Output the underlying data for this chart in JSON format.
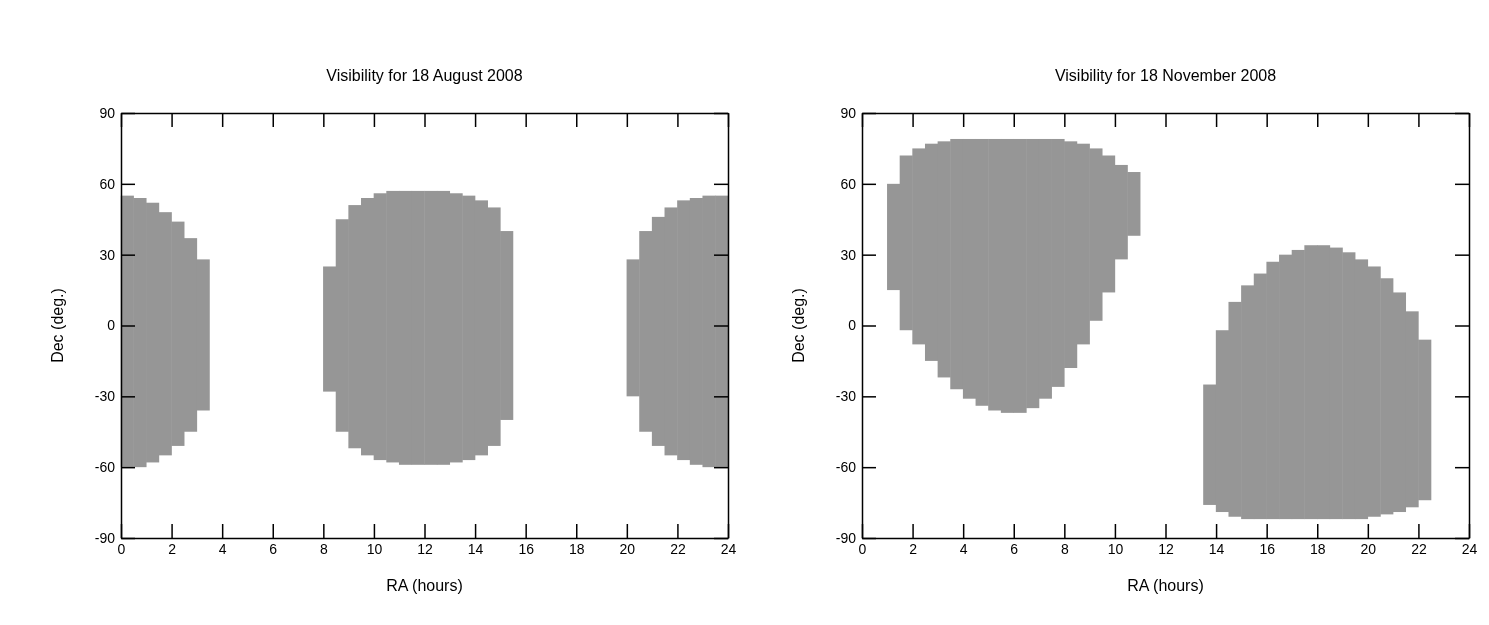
{
  "chart_data": [
    {
      "type": "bar",
      "title": "Visibility for 18 August 2008",
      "xlabel": "RA (hours)",
      "ylabel": "Dec (deg.)",
      "x": [
        0.25,
        0.75,
        1.25,
        1.75,
        2.25,
        2.75,
        3.25,
        8.25,
        8.75,
        9.25,
        9.75,
        10.25,
        10.75,
        11.25,
        11.75,
        12.25,
        12.75,
        13.25,
        13.75,
        14.25,
        14.75,
        15.25,
        20.25,
        20.75,
        21.25,
        21.75,
        22.25,
        22.75,
        23.25,
        23.75
      ],
      "base": [
        -60,
        -60,
        -58,
        -55,
        -51,
        -45,
        -36,
        -28,
        -45,
        -52,
        -55,
        -57,
        -58,
        -59,
        -59,
        -59,
        -59,
        -58,
        -57,
        -55,
        -51,
        -40,
        -30,
        -45,
        -51,
        -55,
        -57,
        -59,
        -60,
        -60
      ],
      "values": [
        115,
        114,
        110,
        103,
        95,
        82,
        64,
        53,
        90,
        103,
        109,
        113,
        115,
        116,
        116,
        116,
        116,
        114,
        112,
        108,
        101,
        80,
        58,
        85,
        97,
        105,
        110,
        113,
        115,
        115
      ],
      "color": "#969696",
      "xlim": [
        0,
        24
      ],
      "xticks": [
        0,
        2,
        4,
        6,
        8,
        10,
        12,
        14,
        16,
        18,
        20,
        22,
        24
      ],
      "ylim": [
        -90,
        90
      ],
      "yticks": [
        -90,
        -60,
        -30,
        0,
        30,
        60,
        90
      ]
    },
    {
      "type": "bar",
      "title": "Visibility for 18 November 2008",
      "xlabel": "RA (hours)",
      "ylabel": "Dec (deg.)",
      "x": [
        1.25,
        1.75,
        2.25,
        2.75,
        3.25,
        3.75,
        4.25,
        4.75,
        5.25,
        5.75,
        6.25,
        6.75,
        7.25,
        7.75,
        8.25,
        8.75,
        9.25,
        9.75,
        10.25,
        10.75,
        13.75,
        14.25,
        14.75,
        15.25,
        15.75,
        16.25,
        16.75,
        17.25,
        17.75,
        18.25,
        18.75,
        19.25,
        19.75,
        20.25,
        20.75,
        21.25,
        21.75,
        22.25
      ],
      "base": [
        15,
        -2,
        -8,
        -15,
        -22,
        -27,
        -31,
        -34,
        -36,
        -37,
        -37,
        -35,
        -31,
        -26,
        -18,
        -8,
        2,
        14,
        28,
        38,
        -76,
        -79,
        -81,
        -82,
        -82,
        -82,
        -82,
        -82,
        -82,
        -82,
        -82,
        -82,
        -82,
        -81,
        -80,
        -79,
        -77,
        -74
      ],
      "values": [
        45,
        74,
        83,
        92,
        100,
        106,
        110,
        113,
        115,
        116,
        116,
        114,
        110,
        105,
        96,
        85,
        73,
        58,
        40,
        27,
        51,
        77,
        91,
        99,
        104,
        109,
        112,
        114,
        116,
        116,
        115,
        113,
        110,
        106,
        100,
        93,
        83,
        68
      ],
      "color": "#969696",
      "xlim": [
        0,
        24
      ],
      "xticks": [
        0,
        2,
        4,
        6,
        8,
        10,
        12,
        14,
        16,
        18,
        20,
        22,
        24
      ],
      "ylim": [
        -90,
        90
      ],
      "yticks": [
        -90,
        -60,
        -30,
        0,
        30,
        60,
        90
      ]
    }
  ]
}
